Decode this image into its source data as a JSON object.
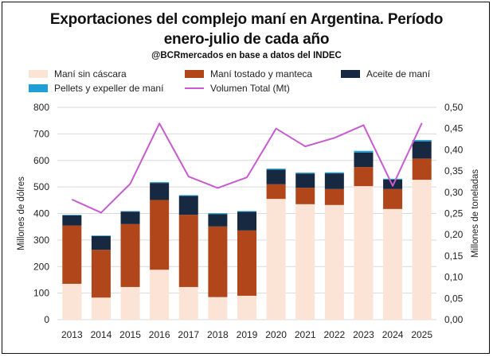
{
  "header": {
    "title_line1": "Exportaciones del complejo maní en Argentina. Período",
    "title_line2": "enero-julio de cada año",
    "subtitle": "@BCRmercados  en base a datos del INDEC"
  },
  "chart_data": {
    "type": "bar",
    "stacked": true,
    "categories": [
      "2013",
      "2014",
      "2015",
      "2016",
      "2017",
      "2018",
      "2019",
      "2020",
      "2021",
      "2022",
      "2023",
      "2024",
      "2025"
    ],
    "series": [
      {
        "name": "Maní sin cáscara",
        "color": "#fbe3d6",
        "values": [
          135,
          83,
          123,
          188,
          123,
          85,
          90,
          455,
          435,
          432,
          503,
          417,
          527
        ]
      },
      {
        "name": "Maní tostado y manteca",
        "color": "#b0461a",
        "values": [
          220,
          180,
          237,
          263,
          272,
          266,
          246,
          55,
          62,
          60,
          72,
          75,
          80
        ]
      },
      {
        "name": "Aceite de maní",
        "color": "#172940",
        "values": [
          38,
          52,
          47,
          64,
          71,
          47,
          70,
          55,
          53,
          59,
          55,
          36,
          65
        ]
      },
      {
        "name": "Pellets y expeller de maní",
        "color": "#1f9fd4",
        "values": [
          2,
          2,
          2,
          3,
          3,
          3,
          3,
          4,
          4,
          4,
          6,
          3,
          5
        ]
      }
    ],
    "line_series": {
      "name": "Volumen Total (Mt)",
      "color": "#c65ccf",
      "axis": "right",
      "values": [
        0.283,
        0.252,
        0.32,
        0.462,
        0.337,
        0.31,
        0.335,
        0.45,
        0.408,
        0.428,
        0.458,
        0.315,
        0.463
      ]
    },
    "ylabel": "Millones de dólres",
    "ylabel_right": "Millones de toneladas",
    "ylim": [
      0,
      800
    ],
    "ylim_right": [
      0,
      0.5
    ],
    "yticks": [
      "0",
      "100",
      "200",
      "300",
      "400",
      "500",
      "600",
      "700",
      "800"
    ],
    "yticks_right": [
      "0,00",
      "0,05",
      "0,10",
      "0,15",
      "0,20",
      "0,25",
      "0,30",
      "0,35",
      "0,40",
      "0,45",
      "0,50"
    ],
    "grid": true,
    "legend_position": "top"
  }
}
